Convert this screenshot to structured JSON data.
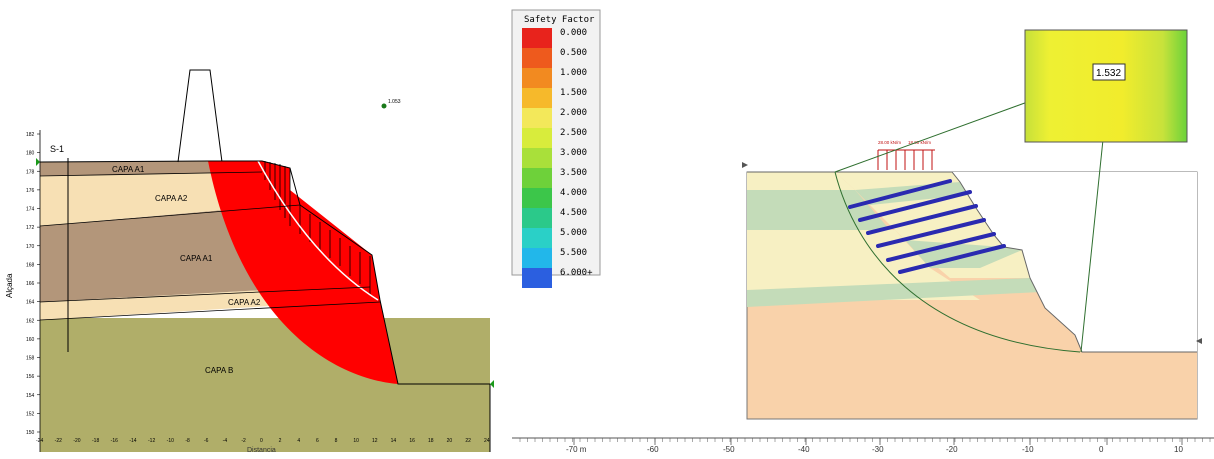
{
  "left_model": {
    "borehole_label": "S-1",
    "point_label": "1.053",
    "layers": {
      "capa_a1_top": "CAPA A1",
      "capa_a2_upper": "CAPA A2",
      "capa_a1_mid": "CAPA A1",
      "capa_a2_lower": "CAPA A2",
      "capa_b": "CAPA B"
    },
    "y_axis": {
      "label": "Alçada",
      "ticks": [
        "150",
        "152",
        "154",
        "156",
        "158",
        "160",
        "162",
        "164",
        "166",
        "168",
        "170",
        "172",
        "174",
        "176",
        "178",
        "180",
        "182"
      ]
    },
    "x_axis": {
      "label": "Distancia",
      "ticks": [
        "-24",
        "-22",
        "-20",
        "-18",
        "-16",
        "-14",
        "-12",
        "-10",
        "-8",
        "-6",
        "-4",
        "-2",
        "0",
        "2",
        "4",
        "6",
        "8",
        "10",
        "12",
        "14",
        "16",
        "18",
        "20",
        "22",
        "24"
      ]
    },
    "colors": {
      "capa_a1": "#b3967a",
      "capa_a2": "#f7e0b4",
      "capa_b": "#b0ae69",
      "failure": "#ff0000"
    }
  },
  "legend": {
    "title": "Safety Factor",
    "items": [
      {
        "label": "0.000",
        "color": "#e8231c"
      },
      {
        "label": "0.500",
        "color": "#ee5a1d"
      },
      {
        "label": "1.000",
        "color": "#f28a20"
      },
      {
        "label": "1.500",
        "color": "#f6b92b"
      },
      {
        "label": "2.000",
        "color": "#f3e85a"
      },
      {
        "label": "2.500",
        "color": "#d8ec3c"
      },
      {
        "label": "3.000",
        "color": "#a9e03a"
      },
      {
        "label": "3.500",
        "color": "#6ed13a"
      },
      {
        "label": "4.000",
        "color": "#3cc64a"
      },
      {
        "label": "4.500",
        "color": "#2bc98a"
      },
      {
        "label": "5.000",
        "color": "#2ad0c7"
      },
      {
        "label": "5.500",
        "color": "#22b7ea"
      },
      {
        "label": "6.000+",
        "color": "#2b5fe0"
      }
    ]
  },
  "right_model": {
    "safety_factor": "1.532",
    "load_label_1": "28.00 kN/m",
    "load_label_2": "18.00 kN/m",
    "ruler_ticks": [
      "-70 m",
      "-60",
      "-50",
      "-40",
      "-30",
      "-20",
      "-10",
      "0",
      "10"
    ]
  }
}
